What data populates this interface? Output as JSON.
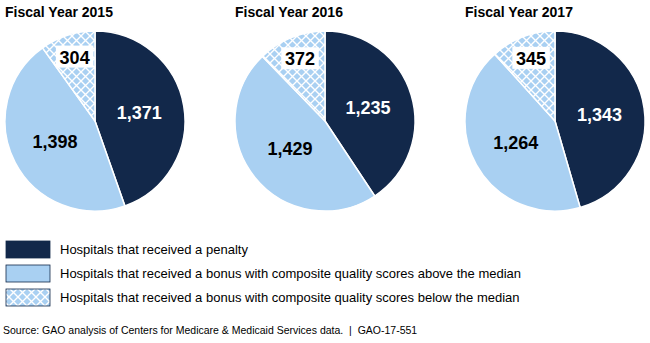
{
  "chart_data": {
    "type": "pie",
    "categories": [
      "Hospitals that received a penalty",
      "Hospitals that received a bonus with composite quality scores above the median",
      "Hospitals that received a bonus with composite quality scores below the median"
    ],
    "colors": [
      "#12284a",
      "#a9d0f2",
      "#a9d0f2"
    ],
    "series": [
      {
        "name": "Fiscal Year 2015",
        "values": [
          1371,
          1398,
          304
        ],
        "value_labels": [
          "1,371",
          "1,398",
          "304"
        ]
      },
      {
        "name": "Fiscal Year 2016",
        "values": [
          1235,
          1429,
          372
        ],
        "value_labels": [
          "1,235",
          "1,429",
          "372"
        ]
      },
      {
        "name": "Fiscal Year 2017",
        "values": [
          1343,
          1264,
          345
        ],
        "value_labels": [
          "1,343",
          "1,264",
          "345"
        ]
      }
    ],
    "data_labels": true,
    "source": "Source: GAO analysis of Centers for Medicare & Medicaid Services data.  |  GAO-17-551"
  }
}
